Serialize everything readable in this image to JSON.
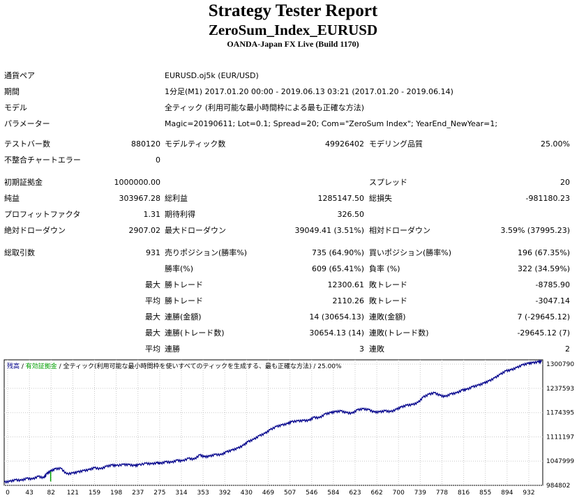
{
  "report": {
    "title": "Strategy Tester Report",
    "subtitle": "ZeroSum_Index_EURUSD",
    "broker": "OANDA-Japan FX Live (Build 1170)"
  },
  "info": {
    "symbol_label": "通貨ペア",
    "symbol_value": "EURUSD.oj5k (EUR/USD)",
    "period_label": "期間",
    "period_value": "1分足(M1) 2017.01.20 00:00 - 2019.06.13 03:21 (2017.01.20 - 2019.06.14)",
    "model_label": "モデル",
    "model_value": "全ティック (利用可能な最小時間枠による最も正確な方法)",
    "params_label": "パラメーター",
    "params_value": "Magic=20190611; Lot=0.1; Spread=20; Com=\"ZeroSum Index\"; YearEnd_NewYear=1;"
  },
  "stats": {
    "bars_label": "テストバー数",
    "bars_value": "880120",
    "ticks_label": "モデルティック数",
    "ticks_value": "49926402",
    "quality_label": "モデリング品質",
    "quality_value": "25.00%",
    "mismatch_label": "不整合チャートエラー",
    "mismatch_value": "0",
    "deposit_label": "初期証拠金",
    "deposit_value": "1000000.00",
    "spread_label": "スプレッド",
    "spread_value": "20",
    "netprofit_label": "純益",
    "netprofit_value": "303967.28",
    "grossprofit_label": "総利益",
    "grossprofit_value": "1285147.50",
    "grossloss_label": "総損失",
    "grossloss_value": "-981180.23",
    "pf_label": "プロフィットファクタ",
    "pf_value": "1.31",
    "expected_label": "期待利得",
    "expected_value": "326.50",
    "absdd_label": "絶対ドローダウン",
    "absdd_value": "2907.02",
    "maxdd_label": "最大ドローダウン",
    "maxdd_value": "39049.41 (3.51%)",
    "reldd_label": "相対ドローダウン",
    "reldd_value": "3.59% (37995.23)",
    "trades_label": "総取引数",
    "trades_value": "931",
    "short_label": "売りポジション(勝率%)",
    "short_value": "735 (64.90%)",
    "long_label": "買いポジション(勝率%)",
    "long_value": "196 (67.35%)",
    "winrate_label": "勝率(%)",
    "winrate_value": "609 (65.41%)",
    "lossrate_label": "負率 (%)",
    "lossrate_value": "322 (34.59%)",
    "max_label": "最大",
    "avg_label": "平均",
    "largest_win_label": "勝トレード",
    "largest_win_value": "12300.61",
    "largest_loss_label": "敗トレード",
    "largest_loss_value": "-8785.90",
    "average_win_label": "勝トレード",
    "average_win_value": "2110.26",
    "average_loss_label": "敗トレード",
    "average_loss_value": "-3047.14",
    "max_consec_wins_label": "連勝(金額)",
    "max_consec_wins_value": "14 (30654.13)",
    "max_consec_losses_label": "連敗(金額)",
    "max_consec_losses_value": "7 (-29645.12)",
    "max_consec_profit_label": "連勝(トレード数)",
    "max_consec_profit_value": "30654.13 (14)",
    "max_consec_loss_label": "連敗(トレード数)",
    "max_consec_loss_value": "-29645.12 (7)",
    "avg_consec_wins_label": "連勝",
    "avg_consec_wins_value": "3",
    "avg_consec_losses_label": "連敗",
    "avg_consec_losses_value": "2"
  },
  "chart_data": {
    "type": "line",
    "legend_balance": "残高",
    "legend_sep": " / ",
    "legend_equity": "有効証拠金",
    "legend_model": " / 全ティック(利用可能な最小時間枠を使いすべてのティックを生成する、最も正確な方法) / 25.00%",
    "colors": {
      "balance": "#00008B",
      "equity": "#00A000",
      "legend_balance": "#00008B",
      "legend_equity": "#00A000"
    },
    "xlim": [
      0,
      950
    ],
    "ylim": [
      984802,
      1312000
    ],
    "x_ticks": [
      "0",
      "43",
      "82",
      "121",
      "159",
      "198",
      "237",
      "275",
      "314",
      "353",
      "392",
      "430",
      "469",
      "507",
      "546",
      "584",
      "623",
      "662",
      "700",
      "739",
      "778",
      "816",
      "855",
      "894",
      "932"
    ],
    "y_ticks": [
      1300790,
      1237593,
      1174395,
      1111197,
      1047999,
      984802
    ],
    "series": [
      {
        "name": "残高",
        "x": [
          0,
          10,
          20,
          30,
          40,
          50,
          60,
          70,
          75,
          82,
          90,
          100,
          110,
          121,
          130,
          140,
          150,
          159,
          170,
          180,
          190,
          198,
          210,
          220,
          230,
          237,
          250,
          260,
          270,
          275,
          285,
          295,
          305,
          314,
          325,
          335,
          345,
          353,
          362,
          372,
          383,
          392,
          402,
          412,
          422,
          430,
          440,
          450,
          460,
          469,
          480,
          490,
          500,
          507,
          518,
          528,
          538,
          546,
          556,
          566,
          576,
          584,
          594,
          604,
          614,
          623,
          633,
          643,
          653,
          662,
          672,
          682,
          692,
          700,
          710,
          720,
          730,
          739,
          749,
          759,
          769,
          778,
          788,
          798,
          808,
          816,
          826,
          836,
          846,
          855,
          865,
          875,
          885,
          894,
          904,
          914,
          924,
          932,
          942,
          948
        ],
        "y": [
          993000,
          995000,
          999000,
          997500,
          1003000,
          1001000,
          1008000,
          1004000,
          1015000,
          1022000,
          1027500,
          1029000,
          1014500,
          1016500,
          1019500,
          1023000,
          1025500,
          1030500,
          1027500,
          1034000,
          1037500,
          1036000,
          1039000,
          1038500,
          1036000,
          1038000,
          1042000,
          1040500,
          1043500,
          1041500,
          1046000,
          1044500,
          1050000,
          1048000,
          1055000,
          1052500,
          1064000,
          1059000,
          1060500,
          1065000,
          1064500,
          1072000,
          1076500,
          1081500,
          1089000,
          1098500,
          1104500,
          1114000,
          1120000,
          1129500,
          1138000,
          1142000,
          1145500,
          1150500,
          1152500,
          1153500,
          1154000,
          1162000,
          1160500,
          1170500,
          1174000,
          1176500,
          1178500,
          1174000,
          1172500,
          1181500,
          1184000,
          1182000,
          1175500,
          1176000,
          1179000,
          1176500,
          1183000,
          1188500,
          1193500,
          1195000,
          1200500,
          1214500,
          1222000,
          1226000,
          1219000,
          1216000,
          1223000,
          1225500,
          1233000,
          1234500,
          1241500,
          1245500,
          1251000,
          1256500,
          1264500,
          1274000,
          1283000,
          1285500,
          1291500,
          1298500,
          1302500,
          1304000,
          1306500,
          1307500
        ]
      }
    ]
  }
}
